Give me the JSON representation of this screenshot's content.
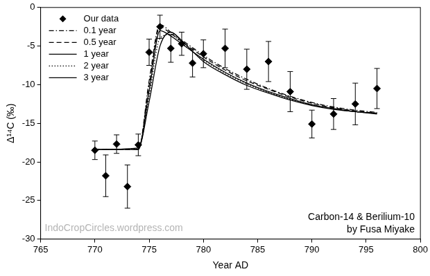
{
  "chart_data": {
    "type": "scatter",
    "x_label": "Year AD",
    "y_label": "Δ¹⁴C (‰)",
    "xlim": [
      765,
      800
    ],
    "xticks": [
      765,
      770,
      775,
      780,
      785,
      790,
      795,
      800
    ],
    "ylim": [
      -30,
      0
    ],
    "yticks": [
      -30,
      -25,
      -20,
      -15,
      -10,
      -5,
      0
    ],
    "grid": false,
    "legend": "upper left",
    "annotations": [
      "IndoCropCircles.wordpress.com",
      "Carbon-14 & Berilium-10",
      "by Fusa Miyake"
    ],
    "series": [
      {
        "name": "Our data",
        "type": "scatter",
        "marker": "diamond",
        "color": "#000000",
        "x": [
          770,
          771,
          772,
          773,
          774,
          775,
          776,
          777,
          778,
          779,
          780,
          782,
          784,
          786,
          788,
          790,
          792,
          794,
          796
        ],
        "values": [
          -18.5,
          -21.8,
          -17.7,
          -23.2,
          -17.8,
          -5.8,
          -2.5,
          -5.3,
          -4.7,
          -7.2,
          -6.0,
          -5.3,
          -8.0,
          -7.0,
          -10.9,
          -15.1,
          -13.8,
          -12.5,
          -10.5
        ],
        "errors": [
          1.2,
          2.7,
          1.2,
          2.8,
          1.4,
          1.7,
          1.5,
          1.8,
          1.5,
          1.8,
          1.8,
          2.5,
          2.6,
          2.6,
          2.6,
          1.8,
          2.0,
          2.7,
          2.6
        ]
      },
      {
        "name": "0.1 year",
        "type": "line",
        "line_style": "dashdot",
        "color": "#000000",
        "x": [
          770,
          774,
          775,
          776,
          777,
          778,
          780,
          782,
          784,
          786,
          788,
          790,
          792,
          794,
          796
        ],
        "values": [
          -18.4,
          -18.4,
          -9.5,
          -2.2,
          -3.2,
          -4.2,
          -6.2,
          -7.9,
          -9.3,
          -10.5,
          -11.5,
          -12.3,
          -12.9,
          -13.3,
          -13.6
        ]
      },
      {
        "name": "0.5 year",
        "type": "line",
        "line_style": "dashed",
        "color": "#000000",
        "x": [
          770,
          774,
          775,
          776,
          777,
          778,
          780,
          782,
          784,
          786,
          788,
          790,
          792,
          794,
          796
        ],
        "values": [
          -18.4,
          -18.4,
          -10.0,
          -2.5,
          -3.4,
          -4.4,
          -6.4,
          -8.1,
          -9.5,
          -10.6,
          -11.6,
          -12.4,
          -13.0,
          -13.4,
          -13.7
        ]
      },
      {
        "name": "1 year",
        "type": "line",
        "line_style": "solid",
        "color": "#000000",
        "x": [
          770,
          774,
          775,
          776,
          777,
          778,
          780,
          782,
          784,
          786,
          788,
          790,
          792,
          794,
          796
        ],
        "values": [
          -18.4,
          -18.4,
          -10.8,
          -3.0,
          -3.7,
          -4.7,
          -6.7,
          -8.4,
          -9.8,
          -10.9,
          -11.8,
          -12.6,
          -13.1,
          -13.5,
          -13.7
        ]
      },
      {
        "name": "2 year",
        "type": "line",
        "line_style": "dotted",
        "color": "#000000",
        "x": [
          770,
          774,
          775,
          776,
          777,
          778,
          780,
          782,
          784,
          786,
          788,
          790,
          792,
          794,
          796
        ],
        "values": [
          -18.4,
          -18.3,
          -11.5,
          -4.0,
          -3.5,
          -4.6,
          -6.8,
          -8.5,
          -9.9,
          -11.0,
          -11.9,
          -12.6,
          -13.1,
          -13.5,
          -13.7
        ]
      },
      {
        "name": "3 year",
        "type": "line",
        "line_style": "solid",
        "color": "#000000",
        "x": [
          770,
          774,
          775,
          776,
          777,
          778,
          780,
          782,
          784,
          786,
          788,
          790,
          792,
          794,
          796
        ],
        "values": [
          -18.4,
          -18.2,
          -12.2,
          -5.0,
          -3.2,
          -4.3,
          -7.0,
          -8.7,
          -10.1,
          -11.1,
          -12.0,
          -12.7,
          -13.2,
          -13.5,
          -13.8
        ]
      }
    ]
  }
}
